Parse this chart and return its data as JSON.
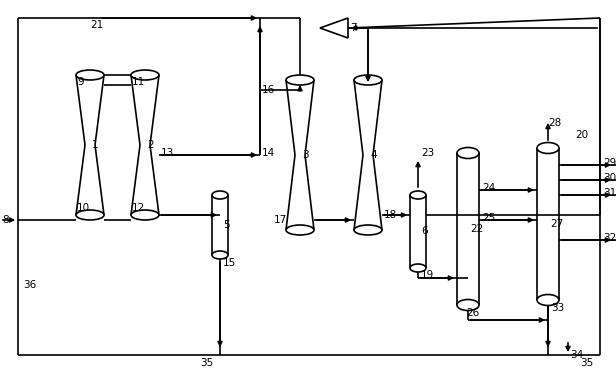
{
  "bg_color": "#ffffff",
  "line_color": "#000000",
  "fig_width": 6.16,
  "fig_height": 3.83,
  "dpi": 100
}
